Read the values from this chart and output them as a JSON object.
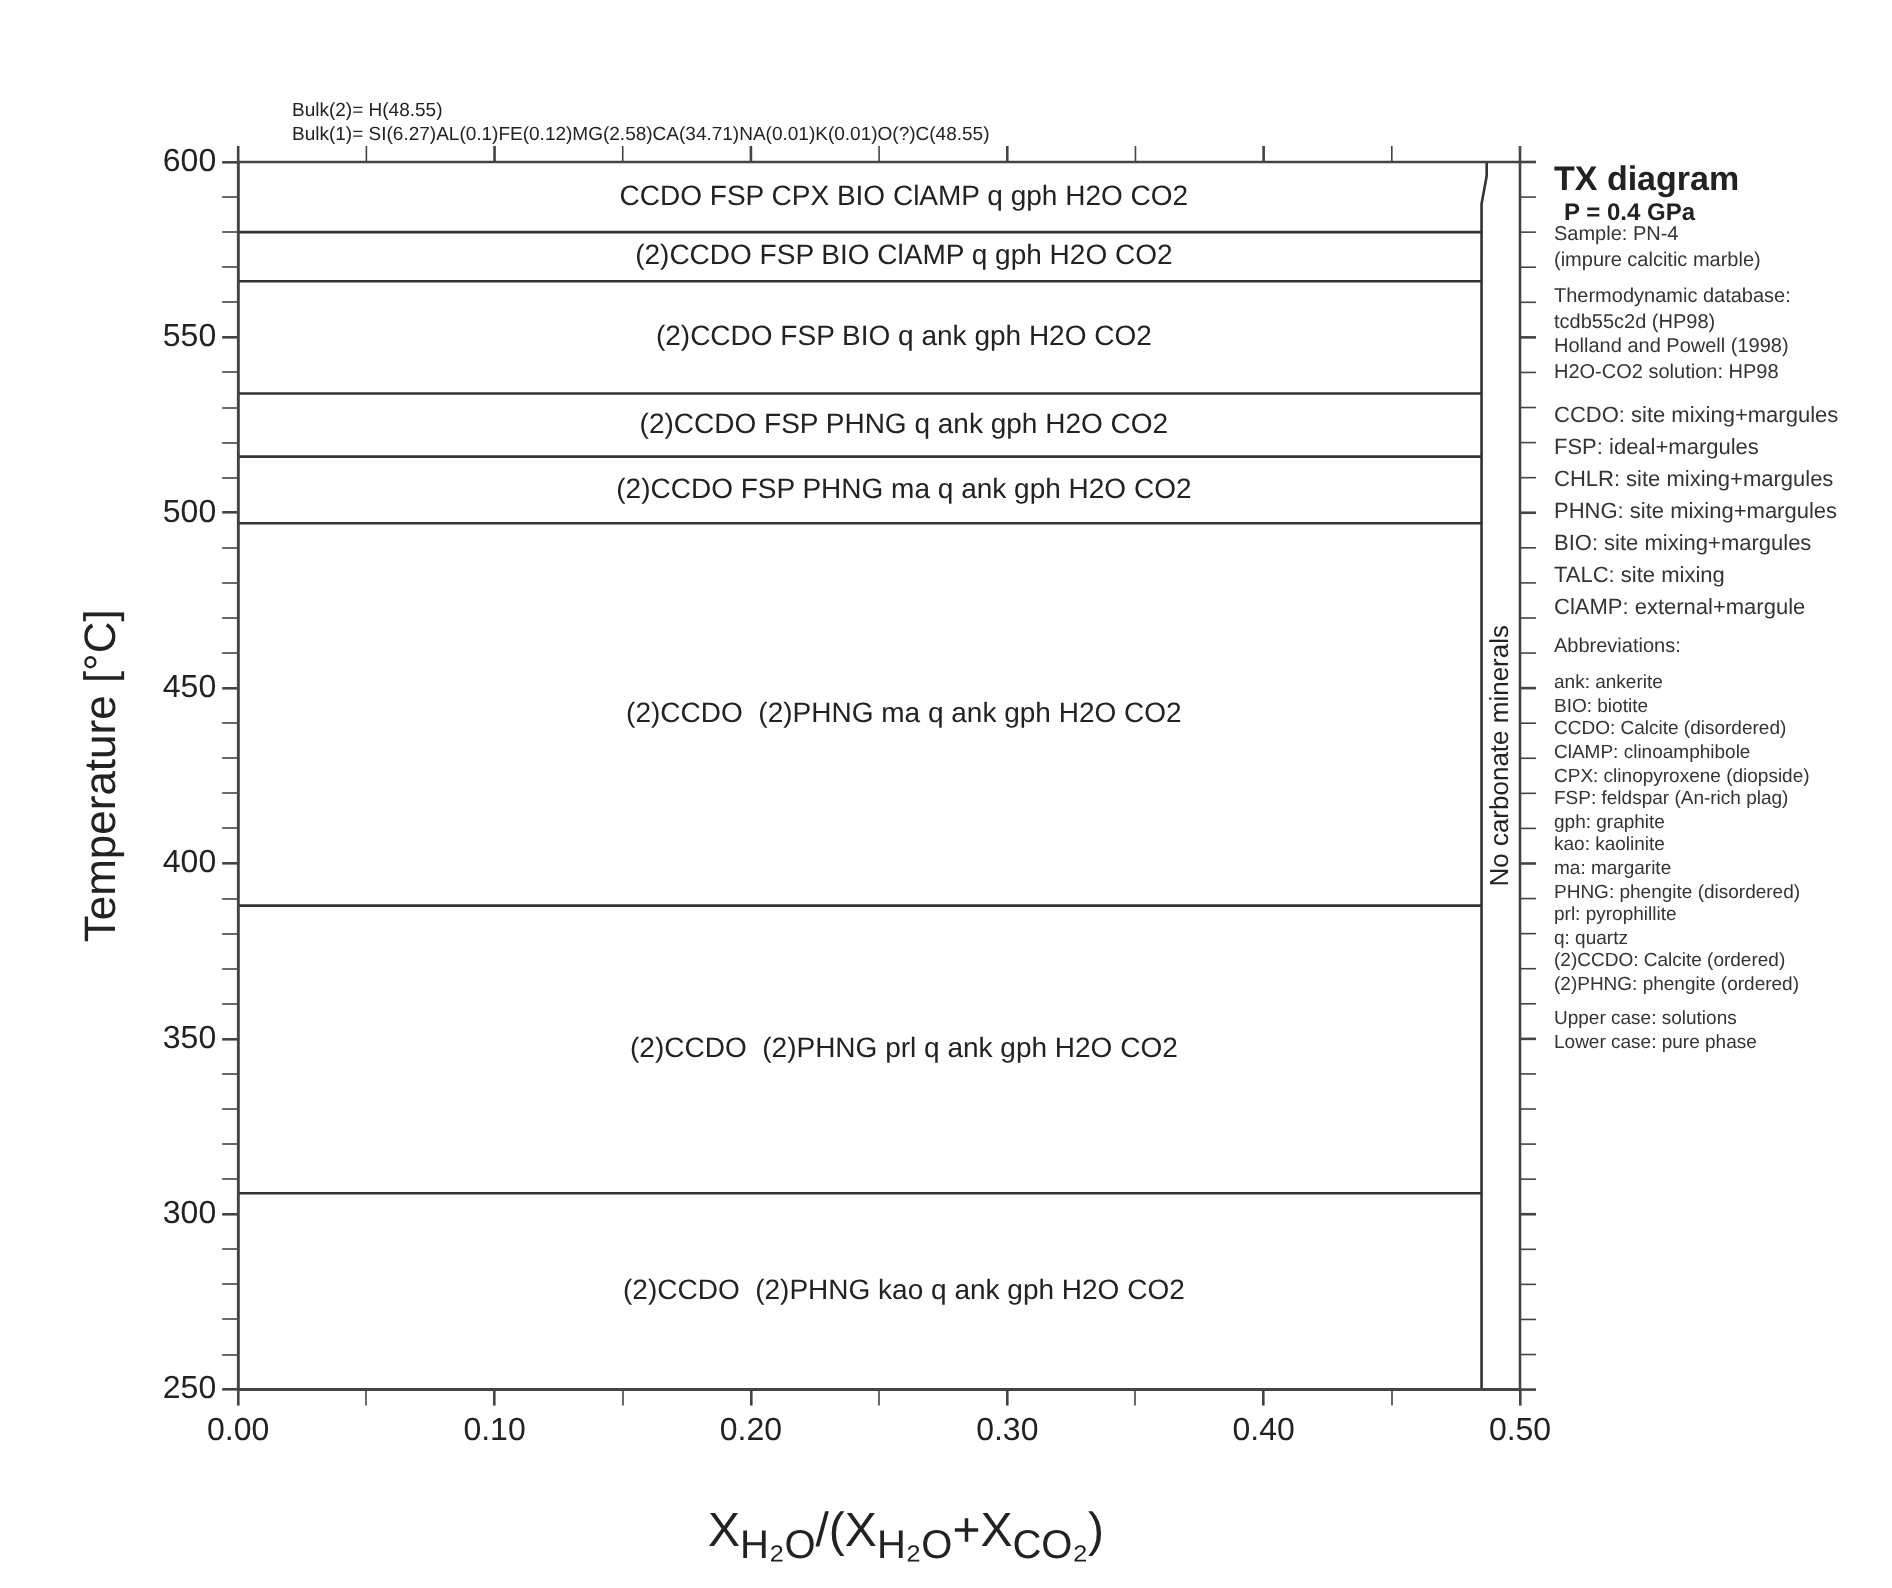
{
  "chart_data": {
    "type": "line",
    "title": "TX diagram",
    "subtitle": "P = 0.4 GPa",
    "xlabel": "X$_{H₂O}$/(X$_{H₂O}$+X$_{CO₂}$)",
    "ylabel": "Temperature [°C]",
    "xlim": [
      0,
      0.5
    ],
    "ylim": [
      250,
      600
    ],
    "xticks": [
      {
        "value": 0,
        "label": "0.00"
      },
      {
        "value": 0.05,
        "label": null
      },
      {
        "value": 0.1,
        "label": "0.10"
      },
      {
        "value": 0.15,
        "label": null
      },
      {
        "value": 0.2,
        "label": "0.20"
      },
      {
        "value": 0.25,
        "label": null
      },
      {
        "value": 0.3,
        "label": "0.30"
      },
      {
        "value": 0.35,
        "label": null
      },
      {
        "value": 0.4,
        "label": "0.40"
      },
      {
        "value": 0.45,
        "label": null
      },
      {
        "value": 0.5,
        "label": "0.50"
      }
    ],
    "yticks": [
      250,
      {
        "value": 260,
        "label": null
      },
      {
        "value": 270,
        "label": null
      },
      {
        "value": 280,
        "label": null
      },
      {
        "value": 290,
        "label": null
      },
      300,
      {
        "value": 310,
        "label": null
      },
      {
        "value": 320,
        "label": null
      },
      {
        "value": 330,
        "label": null
      },
      {
        "value": 340,
        "label": null
      },
      350,
      {
        "value": 360,
        "label": null
      },
      {
        "value": 370,
        "label": null
      },
      {
        "value": 380,
        "label": null
      },
      {
        "value": 390,
        "label": null
      },
      400,
      {
        "value": 410,
        "label": null
      },
      {
        "value": 420,
        "label": null
      },
      {
        "value": 430,
        "label": null
      },
      {
        "value": 440,
        "label": null
      },
      450,
      {
        "value": 460,
        "label": null
      },
      {
        "value": 470,
        "label": null
      },
      {
        "value": 480,
        "label": null
      },
      {
        "value": 490,
        "label": null
      },
      500,
      {
        "value": 510,
        "label": null
      },
      {
        "value": 520,
        "label": null
      },
      {
        "value": 530,
        "label": null
      },
      {
        "value": 540,
        "label": null
      },
      550,
      {
        "value": 560,
        "label": null
      },
      {
        "value": 570,
        "label": null
      },
      {
        "value": 580,
        "label": null
      },
      {
        "value": 590,
        "label": null
      },
      600
    ],
    "grid": false,
    "legend": false,
    "marker": "none",
    "line_style": "solid",
    "series": [
      {
        "color": "#333333",
        "x": [
          0,
          0.485
        ],
        "values": [
          580,
          580
        ]
      },
      {
        "color": "#333333",
        "x": [
          0,
          0.485
        ],
        "values": [
          566,
          566
        ]
      },
      {
        "color": "#333333",
        "x": [
          0,
          0.485
        ],
        "values": [
          534,
          534
        ]
      },
      {
        "color": "#333333",
        "x": [
          0,
          0.485
        ],
        "values": [
          516,
          516
        ]
      },
      {
        "color": "#333333",
        "x": [
          0,
          0.485
        ],
        "values": [
          497,
          497
        ]
      },
      {
        "color": "#333333",
        "x": [
          0,
          0.485
        ],
        "values": [
          388,
          388
        ]
      },
      {
        "color": "#333333",
        "x": [
          0,
          0.485
        ],
        "values": [
          306,
          306
        ]
      },
      {
        "color": "#333333",
        "x": [
          0.485,
          0.485,
          0.487,
          0.487
        ],
        "values": [
          250,
          588,
          596,
          600
        ]
      }
    ],
    "annotations": [
      "Bulk(2)= H(48.55)",
      "Bulk(1)= SI(6.27)AL(0.1)FE(0.12)MG(2.58)CA(34.71)NA(0.01)K(0.01)O(?)C(48.55)",
      "Sample: PN-4",
      "(impure calcitic marble)",
      "Thermodynamic database:",
      "tcdb55c2d (HP98)",
      "Holland and Powell (1998)",
      "H2O-CO2 solution: HP98",
      "CCDO: site mixing+margules",
      "FSP: ideal+margules",
      "CHLR: site mixing+margules",
      "PHNG: site mixing+margules",
      "BIO: site mixing+margules",
      "TALC: site mixing",
      "ClAMP: external+margule",
      "Abbreviations:",
      "ank: ankerite",
      "BIO: biotite",
      "CCDO: Calcite (disordered)",
      "ClAMP: clinoamphibole",
      "CPX: clinopyroxene (diopside)",
      "FSP: feldspar (An-rich plag)",
      "gph: graphite",
      "kao: kaolinite",
      "ma: margarite",
      "PHNG: phengite (disordered)",
      "prl: pyrophillite",
      "q: quartz",
      "(2)CCDO: Calcite (ordered)",
      "(2)PHNG: phengite (ordered)",
      "Upper case: solutions",
      "Lower case: pure phase",
      "CCDO FSP CPX BIO ClAMP q gph H2O CO2",
      "(2)CCDO FSP BIO ClAMP q gph H2O CO2",
      "(2)CCDO FSP BIO q ank gph H2O CO2",
      "(2)CCDO FSP PHNG q ank gph H2O CO2",
      "(2)CCDO FSP PHNG ma q ank gph H2O CO2",
      "(2)CCDO  (2)PHNG ma q ank gph H2O CO2",
      "(2)CCDO  (2)PHNG prl q ank gph H2O CO2",
      "(2)CCDO  (2)PHNG kao q ank gph H2O CO2",
      "No carbonate minerals"
    ]
  }
}
